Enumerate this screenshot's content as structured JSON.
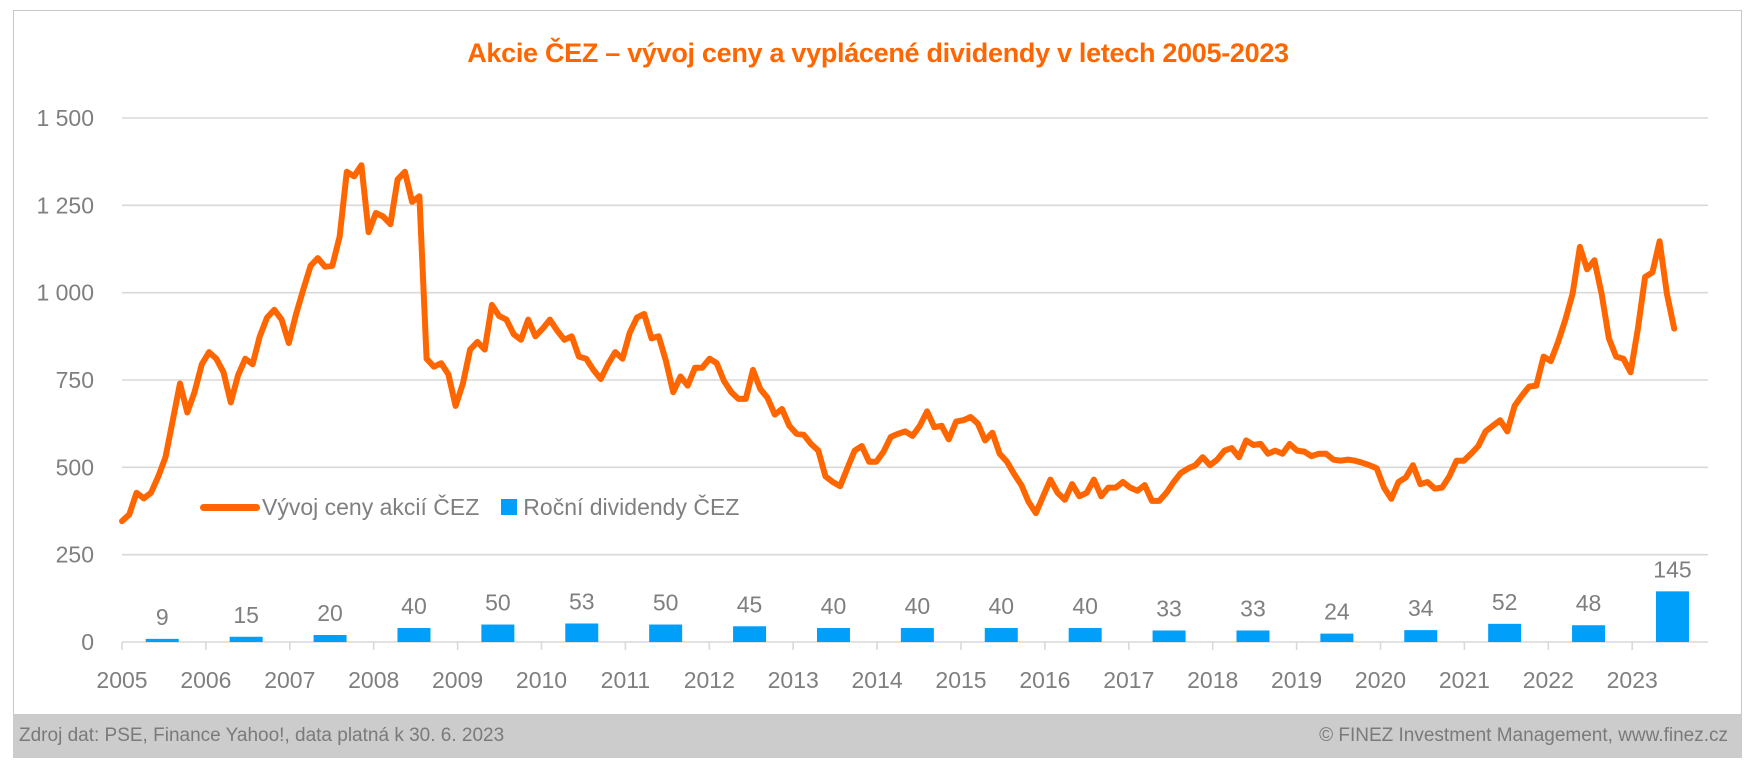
{
  "chart_data": {
    "type": "bar+line",
    "title": "Akcie ČEZ – vývoj ceny a vyplácené dividendy v letech 2005-2023",
    "xlabel": "",
    "ylabel": "",
    "ylim": [
      0,
      1500
    ],
    "xlim": [
      2005,
      2023.9
    ],
    "y_ticks": [
      0,
      250,
      500,
      750,
      1000,
      1250,
      1500
    ],
    "y_tick_labels": [
      "0",
      "250",
      "500",
      "750",
      "1 000",
      "1 250",
      "1 500"
    ],
    "x_ticks": [
      2005,
      2006,
      2007,
      2008,
      2009,
      2010,
      2011,
      2012,
      2013,
      2014,
      2015,
      2016,
      2017,
      2018,
      2019,
      2020,
      2021,
      2022,
      2023
    ],
    "x_tick_labels": [
      "2005",
      "2006",
      "2007",
      "2008",
      "2009",
      "2010",
      "2011",
      "2012",
      "2013",
      "2014",
      "2015",
      "2016",
      "2017",
      "2018",
      "2019",
      "2020",
      "2021",
      "2022",
      "2023"
    ],
    "grid": "horizontal",
    "legend_position": "middle-left",
    "series": [
      {
        "name": "Vývoj ceny akcií ČEZ",
        "type": "line",
        "color": "#ff6600",
        "x_start": 2005.0,
        "x_end": 2023.5,
        "values": [
          346,
          365,
          427,
          411,
          427,
          474,
          529,
          635,
          740,
          657,
          715,
          795,
          830,
          811,
          772,
          686,
          763,
          811,
          795,
          875,
          929,
          951,
          923,
          856,
          939,
          1009,
          1077,
          1099,
          1074,
          1077,
          1160,
          1346,
          1333,
          1365,
          1173,
          1228,
          1218,
          1196,
          1324,
          1346,
          1260,
          1276,
          811,
          788,
          798,
          766,
          676,
          740,
          837,
          859,
          837,
          965,
          933,
          923,
          881,
          865,
          923,
          875,
          897,
          923,
          891,
          865,
          875,
          817,
          811,
          779,
          753,
          795,
          830,
          811,
          885,
          929,
          939,
          869,
          875,
          804,
          715,
          760,
          734,
          785,
          785,
          811,
          798,
          747,
          715,
          696,
          696,
          779,
          724,
          699,
          651,
          667,
          619,
          596,
          593,
          567,
          548,
          474,
          458,
          446,
          497,
          548,
          561,
          516,
          516,
          545,
          587,
          596,
          603,
          590,
          619,
          660,
          615,
          619,
          580,
          631,
          635,
          644,
          625,
          577,
          599,
          539,
          516,
          481,
          449,
          401,
          369,
          417,
          465,
          427,
          407,
          452,
          417,
          427,
          465,
          417,
          442,
          442,
          458,
          442,
          433,
          449,
          404,
          404,
          427,
          458,
          484,
          497,
          506,
          529,
          506,
          522,
          548,
          555,
          529,
          577,
          564,
          567,
          539,
          548,
          539,
          567,
          548,
          545,
          532,
          539,
          539,
          522,
          519,
          522,
          519,
          513,
          506,
          497,
          442,
          410,
          458,
          471,
          506,
          452,
          458,
          439,
          442,
          474,
          519,
          519,
          539,
          561,
          603,
          619,
          635,
          603,
          676,
          705,
          731,
          734,
          817,
          804,
          859,
          923,
          997,
          1131,
          1067,
          1093,
          997,
          869,
          817,
          811,
          772,
          897,
          1045,
          1058,
          1147,
          997,
          897
        ]
      },
      {
        "name": "Roční dividendy ČEZ",
        "type": "bar",
        "color": "#00a0fa",
        "categories": [
          "2005",
          "2006",
          "2007",
          "2008",
          "2009",
          "2010",
          "2011",
          "2012",
          "2013",
          "2014",
          "2015",
          "2016",
          "2017",
          "2018",
          "2019",
          "2020",
          "2021",
          "2022",
          "2023"
        ],
        "values": [
          9,
          15,
          20,
          40,
          50,
          53,
          50,
          45,
          40,
          40,
          40,
          40,
          33,
          33,
          24,
          34,
          52,
          48,
          145
        ],
        "data_labels": [
          "9",
          "15",
          "20",
          "40",
          "50",
          "53",
          "50",
          "45",
          "40",
          "40",
          "40",
          "40",
          "33",
          "33",
          "24",
          "34",
          "52",
          "48",
          "145"
        ]
      }
    ]
  },
  "legend": {
    "line_label": "Vývoj ceny akcií ČEZ",
    "bar_label": "Roční dividendy ČEZ"
  },
  "footer": {
    "source": "Zdroj dat: PSE, Finance Yahoo!, data platná k 30. 6. 2023",
    "copyright": "© FINEZ Investment Management, www.finez.cz"
  }
}
